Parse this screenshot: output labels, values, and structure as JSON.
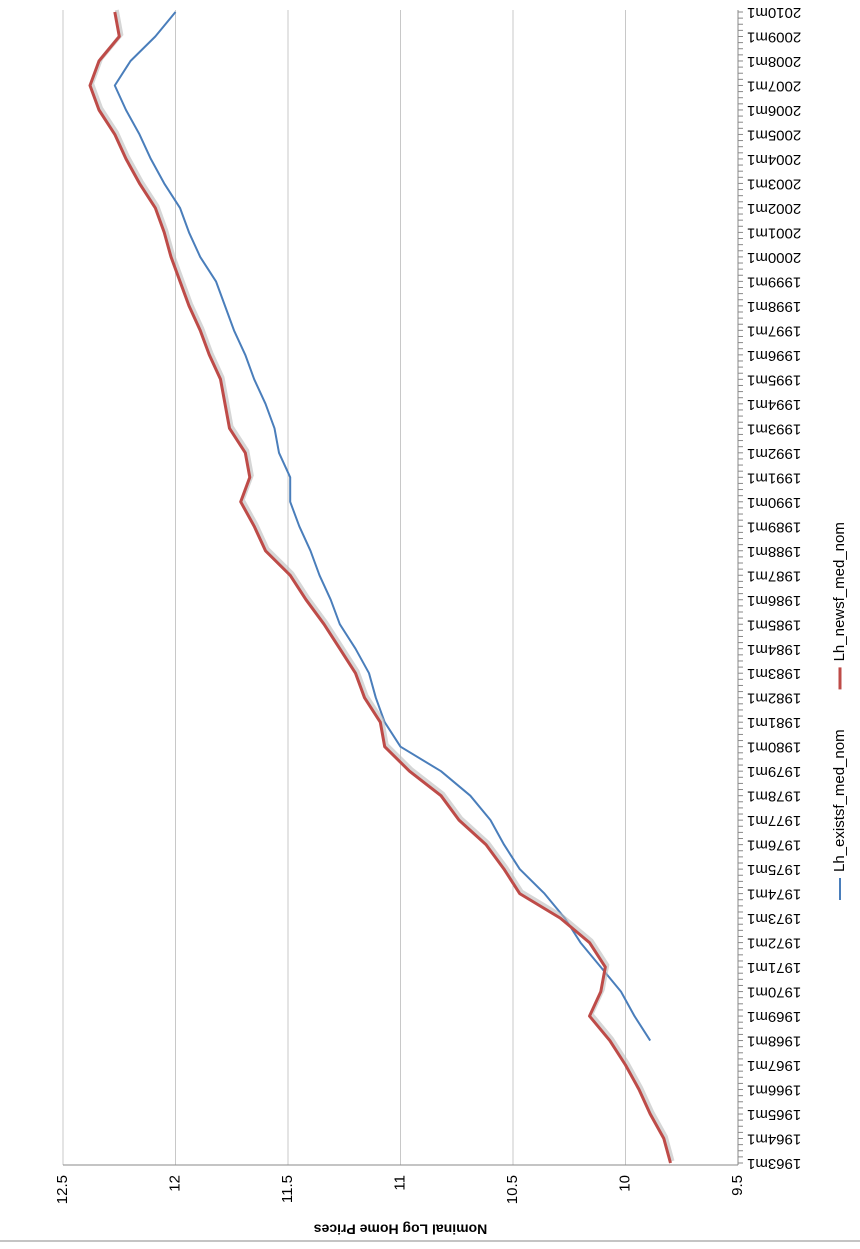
{
  "chart_data": {
    "type": "line",
    "y_label": "Nominal Log Home Prices",
    "categories": [
      "1963m1",
      "1964m1",
      "1965m1",
      "1966m1",
      "1967m1",
      "1968m1",
      "1969m1",
      "1970m1",
      "1971m1",
      "1972m1",
      "1973m1",
      "1974m1",
      "1975m1",
      "1976m1",
      "1977m1",
      "1978m1",
      "1979m1",
      "1980m1",
      "1981m1",
      "1982m1",
      "1983m1",
      "1984m1",
      "1985m1",
      "1986m1",
      "1987m1",
      "1988m1",
      "1989m1",
      "1990m1",
      "1991m1",
      "1992m1",
      "1993m1",
      "1994m1",
      "1995m1",
      "1996m1",
      "1997m1",
      "1998m1",
      "1999m1",
      "2000m1",
      "2001m1",
      "2002m1",
      "2003m1",
      "2004m1",
      "2005m1",
      "2006m1",
      "2007m1",
      "2008m1",
      "2009m1",
      "2010m1"
    ],
    "series": [
      {
        "name": "Lh_existsf_med_nom",
        "color": "#4a7ebb",
        "values": [
          null,
          null,
          null,
          null,
          null,
          9.89,
          9.96,
          10.02,
          10.11,
          10.2,
          10.27,
          10.36,
          10.47,
          10.54,
          10.6,
          10.69,
          10.82,
          11.0,
          11.07,
          11.11,
          11.14,
          11.2,
          11.27,
          11.31,
          11.36,
          11.4,
          11.45,
          11.49,
          11.49,
          11.54,
          11.56,
          11.6,
          11.65,
          11.69,
          11.74,
          11.78,
          11.82,
          11.89,
          11.94,
          11.98,
          12.05,
          12.11,
          12.16,
          12.22,
          12.27,
          12.2,
          12.09,
          12.0
        ]
      },
      {
        "name": "Lh_newsf_med_nom",
        "color": "#be4b48",
        "values": [
          9.8,
          9.83,
          9.89,
          9.94,
          10.0,
          10.07,
          10.16,
          10.11,
          10.09,
          10.16,
          10.29,
          10.47,
          10.54,
          10.62,
          10.74,
          10.82,
          10.96,
          11.07,
          11.09,
          11.16,
          11.2,
          11.27,
          11.34,
          11.42,
          11.49,
          11.6,
          11.65,
          11.71,
          11.67,
          11.69,
          11.76,
          11.78,
          11.8,
          11.85,
          11.89,
          11.94,
          11.98,
          12.02,
          12.05,
          12.09,
          12.16,
          12.22,
          12.27,
          12.34,
          12.38,
          12.34,
          12.25,
          12.27
        ]
      }
    ],
    "ylim": [
      9.5,
      12.5
    ],
    "yticks": [
      9.5,
      10,
      10.5,
      11,
      11.5,
      12,
      12.5
    ],
    "grid": true,
    "legend": "bottom",
    "rotation": -90
  }
}
